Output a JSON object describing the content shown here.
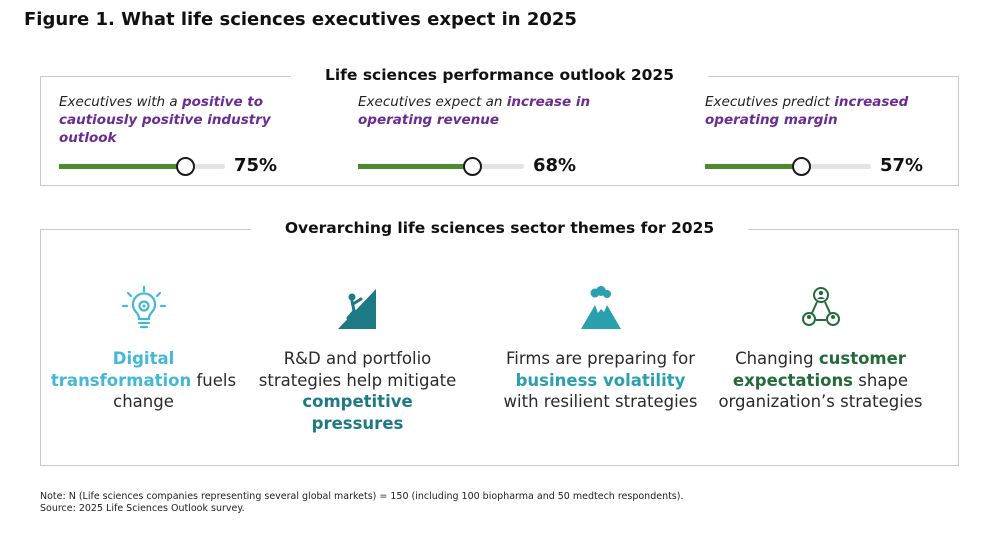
{
  "figure_title": "Figure 1. What life sciences executives expect in 2025",
  "outlook": {
    "title": "Life sciences performance outlook 2025",
    "metrics": [
      {
        "pre": "Executives with a ",
        "highlight": "positive to cautiously positive industry outlook",
        "post": "",
        "value": "75%",
        "level": 0.75
      },
      {
        "pre": "Executives expect an ",
        "highlight": "increase in operating revenue",
        "post": "",
        "value": "68%",
        "level": 0.68
      },
      {
        "pre": "Executives predict ",
        "highlight": "increased operating margin",
        "post": "",
        "value": "57%",
        "level": 0.57
      }
    ]
  },
  "themes": {
    "title": "Overarching life sciences sector themes for 2025",
    "items": [
      {
        "icon": "lightbulb-gear-icon",
        "parts": [
          {
            "text": "Digital transformation",
            "hl": true
          },
          {
            "text": " fuels change",
            "hl": false
          }
        ]
      },
      {
        "icon": "climber-icon",
        "parts": [
          {
            "text": "R&D and portfolio strategies help mitigate ",
            "hl": false
          },
          {
            "text": "competitive pressures",
            "hl": true
          }
        ]
      },
      {
        "icon": "volcano-icon",
        "parts": [
          {
            "text": "Firms are preparing for ",
            "hl": false
          },
          {
            "text": "business volatility",
            "hl": true
          },
          {
            "text": " with resilient strategies",
            "hl": false
          }
        ]
      },
      {
        "icon": "people-network-icon",
        "parts": [
          {
            "text": "Changing ",
            "hl": false
          },
          {
            "text": "customer expectations",
            "hl": true
          },
          {
            "text": " shape organization’s strategies",
            "hl": false
          }
        ]
      }
    ]
  },
  "colors": {
    "purple": "#6b2c91",
    "bar_green": "#4c8a2c",
    "theme1": "#44b8d4",
    "theme2": "#1d7a85",
    "theme3": "#2a9fae",
    "theme4": "#256b3a"
  },
  "note": "Note: N (Life sciences companies representing several global markets) = 150 (including 100 biopharma and 50 medtech respondents).",
  "source": "Source: 2025 Life Sciences Outlook survey."
}
